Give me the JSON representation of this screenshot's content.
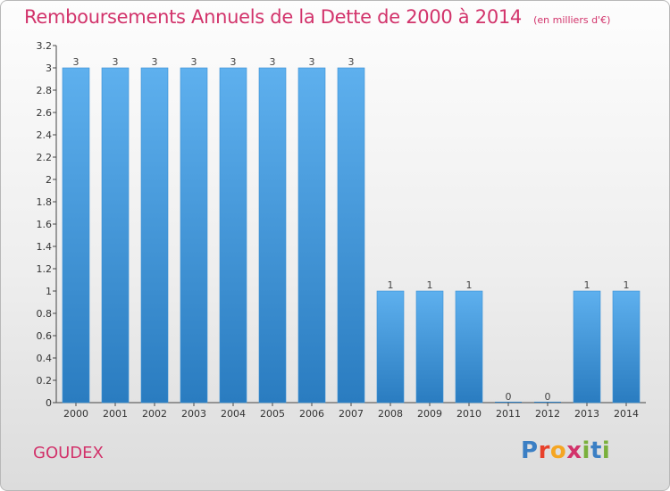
{
  "header": {
    "title": "Remboursements Annuels de la Dette de 2000 à 2014",
    "subtitle": "(en milliers d'€)"
  },
  "footer": {
    "commune": "GOUDEX",
    "logo_text": "Proxiti",
    "logo_letters": [
      {
        "ch": "P",
        "color": "#3b7fc4"
      },
      {
        "ch": "r",
        "color": "#e8412b"
      },
      {
        "ch": "o",
        "color": "#f5a623"
      },
      {
        "ch": "x",
        "color": "#d2336b"
      },
      {
        "ch": "i",
        "color": "#7ab03c"
      },
      {
        "ch": "t",
        "color": "#3b7fc4"
      },
      {
        "ch": "i",
        "color": "#7ab03c"
      }
    ]
  },
  "colors": {
    "bar_top": "#5eb0ee",
    "bar_bottom": "#2a7cc0",
    "accent": "#d2336b"
  },
  "chart_data": {
    "type": "bar",
    "categories": [
      "2000",
      "2001",
      "2002",
      "2003",
      "2004",
      "2005",
      "2006",
      "2007",
      "2008",
      "2009",
      "2010",
      "2011",
      "2012",
      "2013",
      "2014"
    ],
    "values": [
      3,
      3,
      3,
      3,
      3,
      3,
      3,
      3,
      1,
      1,
      1,
      0,
      0,
      1,
      1
    ],
    "data_labels": [
      "3",
      "3",
      "3",
      "3",
      "3",
      "3",
      "3",
      "3",
      "1",
      "1",
      "1",
      "0",
      "0",
      "1",
      "1"
    ],
    "y_ticks": [
      {
        "value": 0,
        "label": "0"
      },
      {
        "value": 0.2,
        "label": "0.2"
      },
      {
        "value": 0.4,
        "label": "0.4"
      },
      {
        "value": 0.6,
        "label": "0.6"
      },
      {
        "value": 0.8,
        "label": "0.8"
      },
      {
        "value": 1.0,
        "label": "1"
      },
      {
        "value": 1.2,
        "label": "1.2"
      },
      {
        "value": 1.4,
        "label": "1.4"
      },
      {
        "value": 1.6,
        "label": "1.6"
      },
      {
        "value": 1.8,
        "label": "1.8"
      },
      {
        "value": 2.0,
        "label": "2"
      },
      {
        "value": 2.2,
        "label": "2.2"
      },
      {
        "value": 2.4,
        "label": "2.4"
      },
      {
        "value": 2.6,
        "label": "2.6"
      },
      {
        "value": 2.8,
        "label": "2.8"
      },
      {
        "value": 3.0,
        "label": "3"
      },
      {
        "value": 3.2,
        "label": "3.2"
      }
    ],
    "ylim": [
      0,
      3.2
    ],
    "grid": false
  }
}
